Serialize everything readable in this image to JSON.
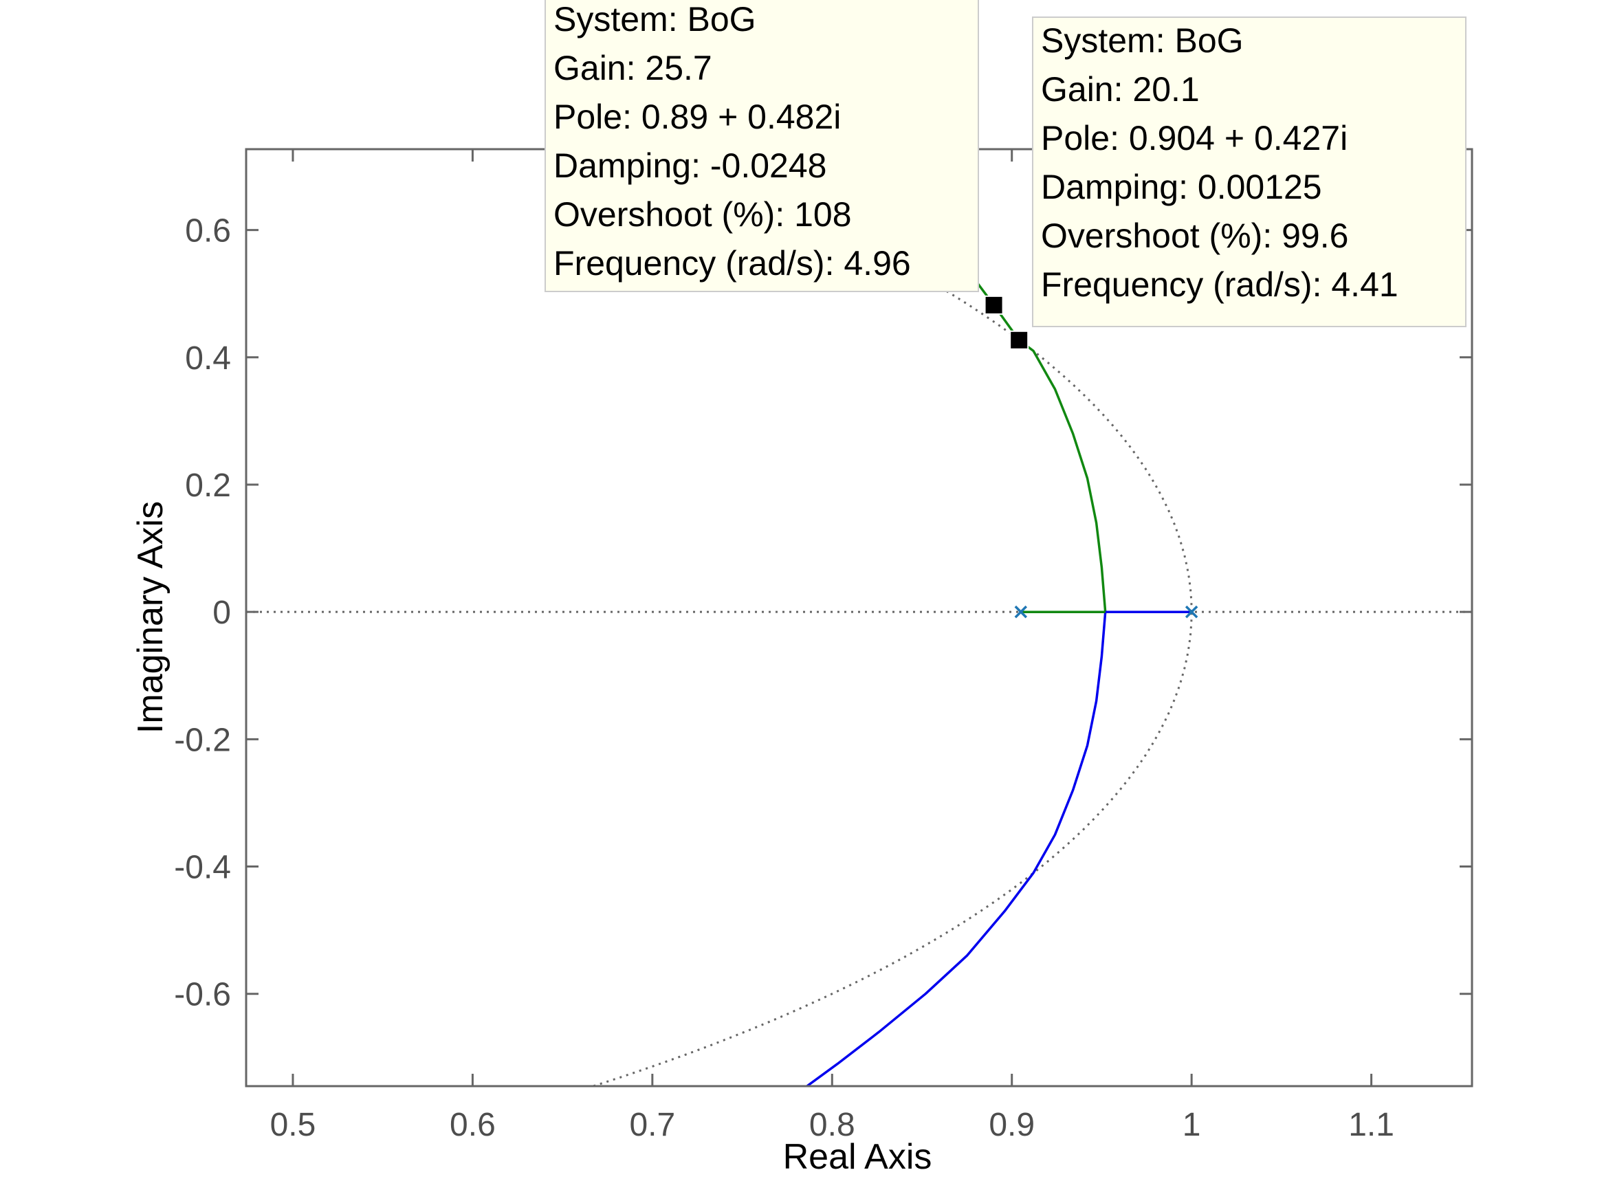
{
  "chart_data": {
    "type": "line",
    "title": "",
    "xlabel": "Real Axis",
    "ylabel": "Imaginary Axis",
    "xlim": [
      0.474,
      1.156
    ],
    "ylim": [
      -0.745,
      0.727
    ],
    "x_ticks": [
      {
        "value": 0.5,
        "label": "0.5"
      },
      {
        "value": 0.6,
        "label": "0.6"
      },
      {
        "value": 0.7,
        "label": "0.7"
      },
      {
        "value": 0.8,
        "label": "0.8"
      },
      {
        "value": 0.9,
        "label": "0.9"
      },
      {
        "value": 1.0,
        "label": "1"
      },
      {
        "value": 1.1,
        "label": "1.1"
      }
    ],
    "y_ticks": [
      {
        "value": 0.6,
        "label": "0.6"
      },
      {
        "value": 0.4,
        "label": "0.4"
      },
      {
        "value": 0.2,
        "label": "0.2"
      },
      {
        "value": 0,
        "label": "0"
      },
      {
        "value": -0.2,
        "label": "-0.2"
      },
      {
        "value": -0.4,
        "label": "-0.4"
      },
      {
        "value": -0.6,
        "label": "-0.6"
      }
    ],
    "grid": false,
    "colors": {
      "branch_1": "#0000ee",
      "branch_2": "#118811",
      "unit_circle": "#666666",
      "pole_marker": "#1f77b4",
      "axes": "#666666"
    },
    "series": [
      {
        "values": [
          {
            "x": 0.952,
            "y": 0
          },
          {
            "x": 0.95,
            "y": -0.07
          },
          {
            "x": 0.947,
            "y": -0.14
          },
          {
            "x": 0.942,
            "y": -0.21
          },
          {
            "x": 0.934,
            "y": -0.28
          },
          {
            "x": 0.924,
            "y": -0.35
          },
          {
            "x": 0.912,
            "y": -0.41
          },
          {
            "x": 0.896,
            "y": -0.47
          },
          {
            "x": 0.875,
            "y": -0.54
          },
          {
            "x": 0.852,
            "y": -0.6
          },
          {
            "x": 0.826,
            "y": -0.66
          },
          {
            "x": 0.803,
            "y": -0.71
          },
          {
            "x": 0.786,
            "y": -0.745
          }
        ]
      },
      {
        "values": [
          {
            "x": 0.952,
            "y": 0
          },
          {
            "x": 0.95,
            "y": 0.07
          },
          {
            "x": 0.947,
            "y": 0.14
          },
          {
            "x": 0.942,
            "y": 0.21
          },
          {
            "x": 0.934,
            "y": 0.28
          },
          {
            "x": 0.924,
            "y": 0.35
          },
          {
            "x": 0.912,
            "y": 0.41
          },
          {
            "x": 0.904,
            "y": 0.427
          },
          {
            "x": 0.89,
            "y": 0.482
          },
          {
            "x": 0.876,
            "y": 0.535
          }
        ]
      },
      {
        "values": [
          {
            "x": 1.0,
            "y": 0
          },
          {
            "x": 0.952,
            "y": 0
          }
        ]
      },
      {
        "values": [
          {
            "x": 0.905,
            "y": 0
          },
          {
            "x": 0.952,
            "y": 0
          }
        ]
      }
    ],
    "poles": [
      {
        "x": 0.905,
        "y": 0
      },
      {
        "x": 1.0,
        "y": 0
      }
    ],
    "data_tips": [
      {
        "point": {
          "x": 0.89,
          "y": 0.482
        },
        "lines": [
          "System: BoG",
          "Gain: 25.7",
          "Pole: 0.89 + 0.482i",
          "Damping: -0.0248",
          "Overshoot (%): 108",
          "Frequency (rad/s): 4.96"
        ]
      },
      {
        "point": {
          "x": 0.904,
          "y": 0.427
        },
        "lines": [
          "System: BoG",
          "Gain: 20.1",
          "Pole: 0.904 + 0.427i",
          "Damping: 0.00125",
          "Overshoot (%): 99.6",
          "Frequency (rad/s): 4.41"
        ]
      }
    ]
  }
}
